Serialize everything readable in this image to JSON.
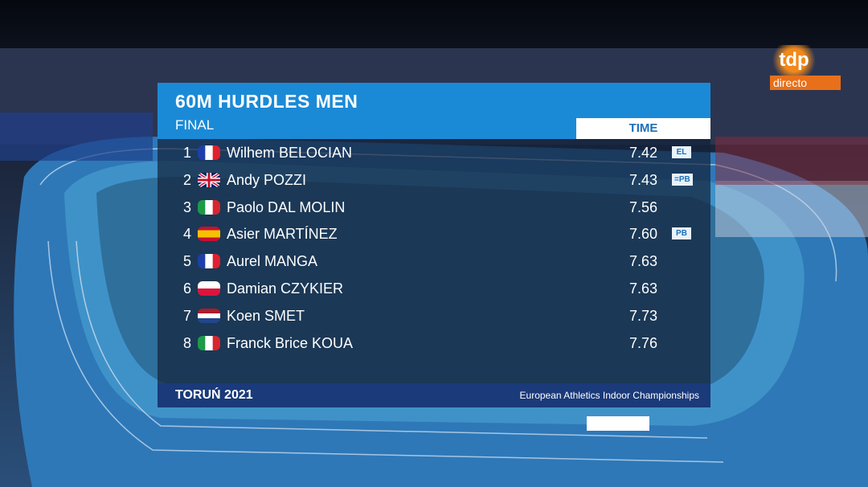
{
  "header": {
    "title": "60M HURDLES MEN",
    "subtitle": "FINAL",
    "column": "TIME"
  },
  "broadcaster": {
    "logo": "tdp",
    "label": "directo"
  },
  "table": {
    "rows": [
      {
        "rank": 1,
        "name": "Wilhem BELOCIAN",
        "time": "7.42",
        "note": "EL"
      },
      {
        "rank": 2,
        "name": "Andy POZZI",
        "time": "7.43",
        "note": "=PB"
      },
      {
        "rank": 3,
        "name": "Paolo DAL MOLIN",
        "time": "7.56"
      },
      {
        "rank": 4,
        "name": "Asier MARTÍNEZ",
        "time": "7.60",
        "note": "PB"
      },
      {
        "rank": 5,
        "name": "Aurel MANGA",
        "time": "7.63"
      },
      {
        "rank": 6,
        "name": "Damian CZYKIER",
        "time": "7.63"
      },
      {
        "rank": 7,
        "name": "Koen SMET",
        "time": "7.73"
      },
      {
        "rank": 8,
        "name": "Franck Brice KOUA",
        "time": "7.76"
      }
    ]
  },
  "footer": {
    "venue": "TORUŃ 2021",
    "event": "European Athletics Indoor Championships"
  }
}
